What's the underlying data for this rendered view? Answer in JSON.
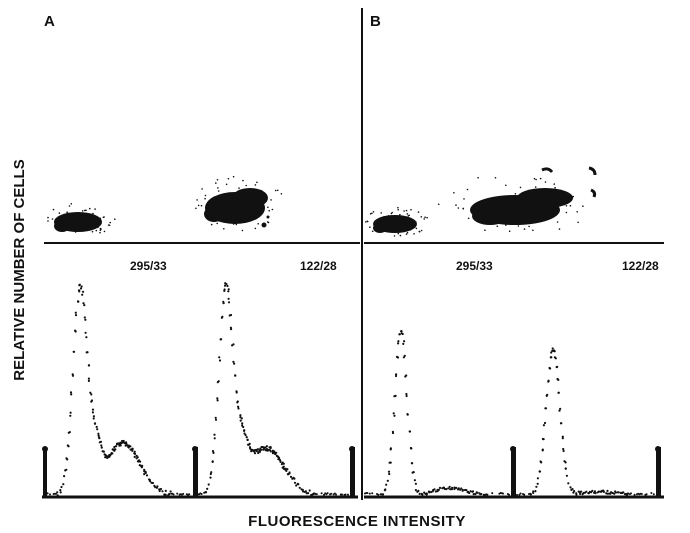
{
  "panels": {
    "a_label": "A",
    "b_label": "B"
  },
  "axes": {
    "y_label": "RELATIVE NUMBER OF CELLS",
    "x_label": "FLUORESCENCE INTENSITY"
  },
  "antibody_labels": {
    "left_a": "295/33",
    "right_a": "122/28",
    "left_b": "295/33",
    "right_b": "122/28"
  },
  "colors": {
    "ink": "#111111",
    "background": "#ffffff"
  }
}
